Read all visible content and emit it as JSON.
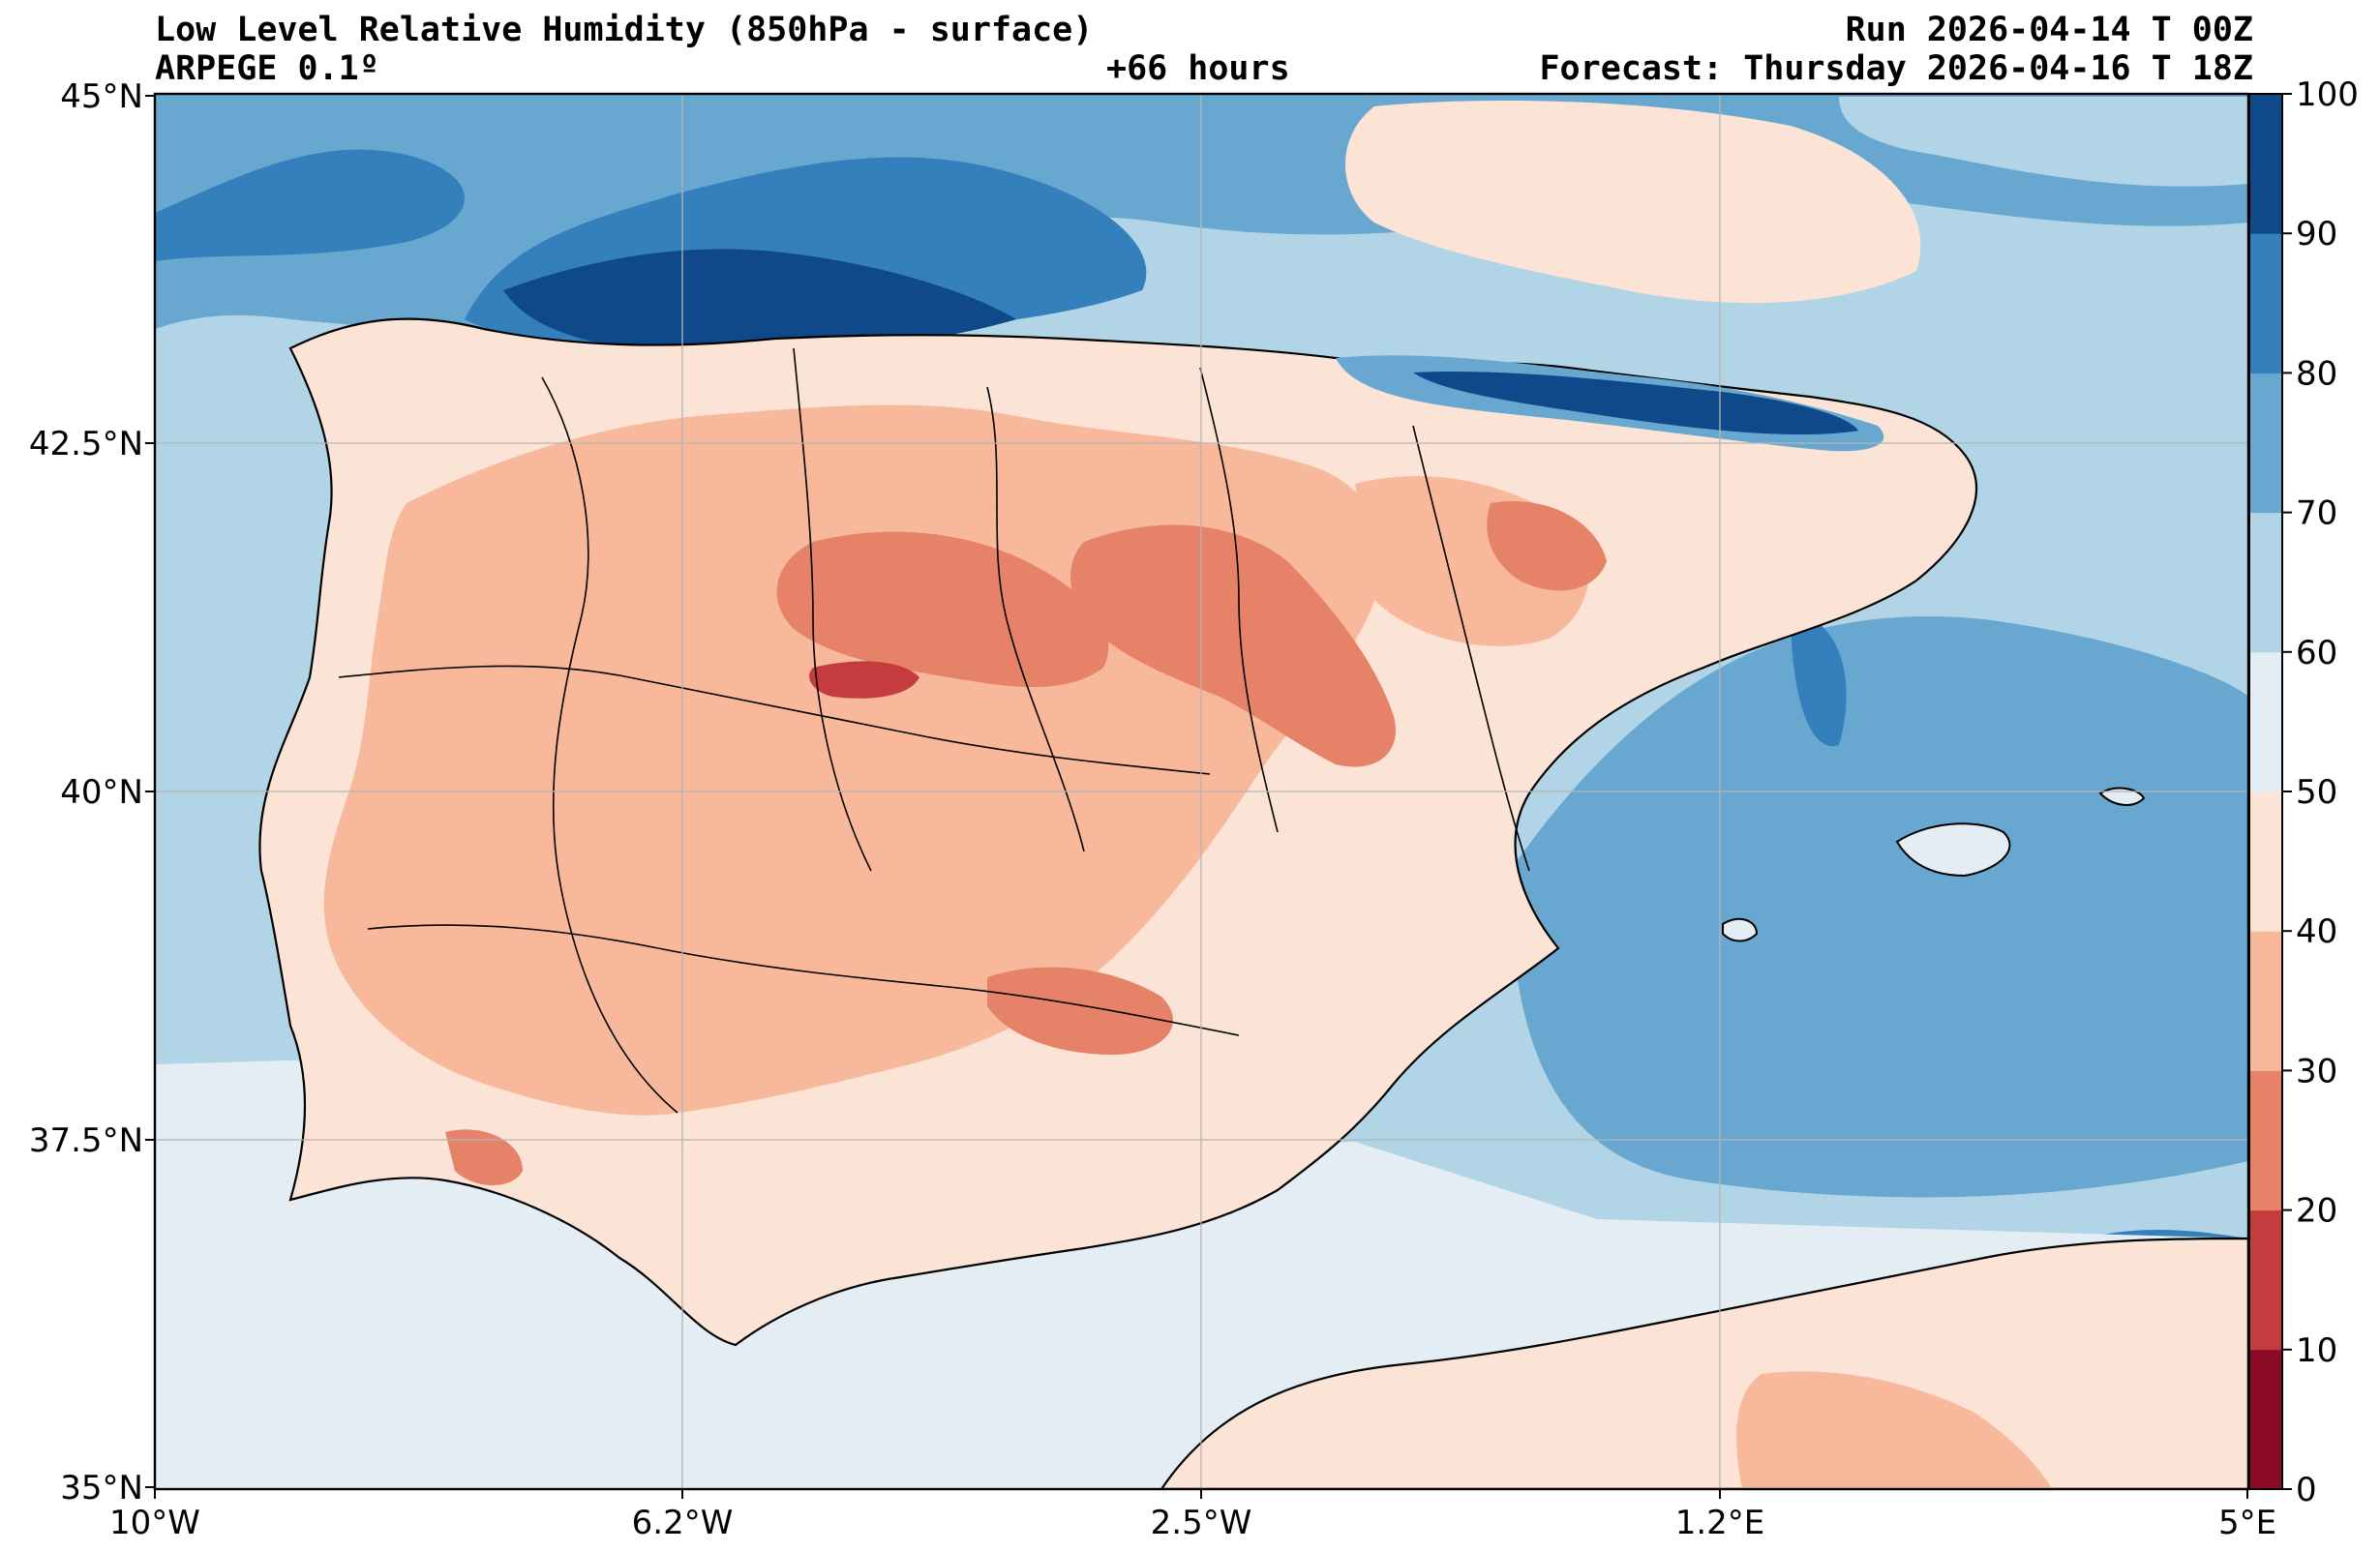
{
  "header": {
    "title": "Low Level Relative Humidity (850hPa - surface)",
    "model": "ARPEGE 0.1º",
    "lead_time": "+66 hours",
    "run": "Run 2026-04-14 T 00Z",
    "forecast": "Forecast: Thursday 2026-04-16 T 18Z"
  },
  "axes": {
    "lat_labels": [
      "45°N",
      "42.5°N",
      "40°N",
      "37.5°N",
      "35°N"
    ],
    "lon_labels": [
      "10°W",
      "6.2°W",
      "2.5°W",
      "1.2°E",
      "5°E"
    ]
  },
  "colorbar": {
    "ticks": [
      "0",
      "10",
      "20",
      "30",
      "40",
      "50",
      "60",
      "70",
      "80",
      "90",
      "100"
    ],
    "colors": [
      "#8b0a26",
      "#c43c3e",
      "#e58268",
      "#f7b89c",
      "#fbe3d6",
      "#e4edf4",
      "#b2d4e7",
      "#68a8d0",
      "#3380bd",
      "#10498a"
    ]
  },
  "palette": {
    "sea_base": "#b2d4e7",
    "land_base": "#fbe3d6",
    "coast": "#000000",
    "grid": "#b4b4b4"
  }
}
